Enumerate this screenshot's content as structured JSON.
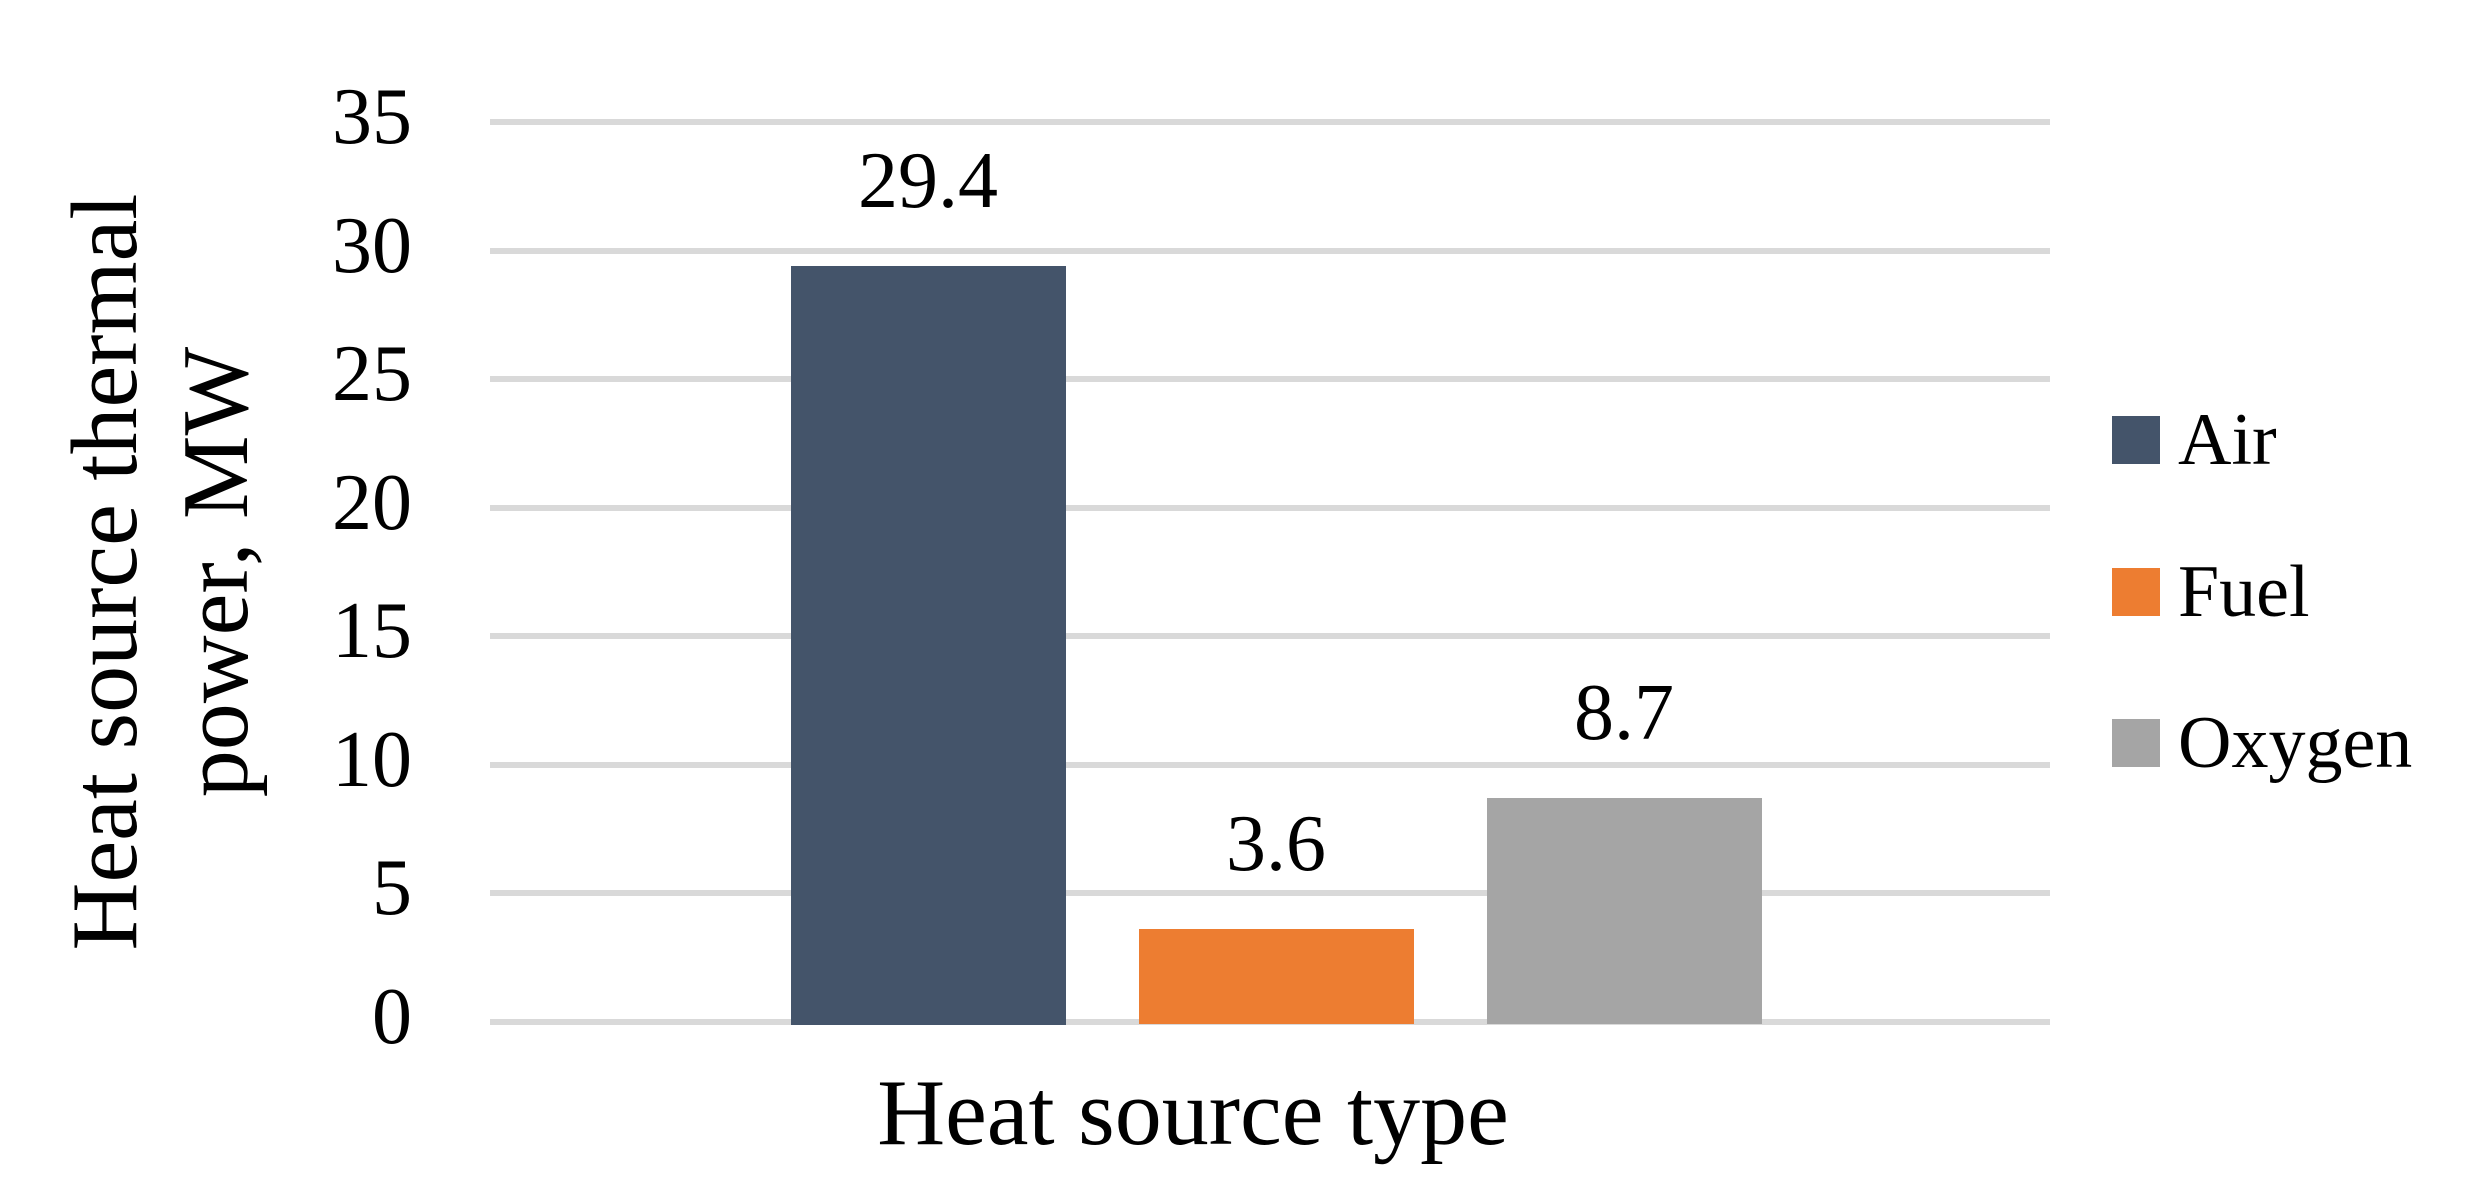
{
  "chart_data": {
    "type": "bar",
    "title": "",
    "xlabel": "Heat source type",
    "ylabel": "Heat source thermal power, MW",
    "ylim": [
      0,
      35
    ],
    "yticks": [
      35,
      30,
      25,
      20,
      15,
      10,
      5,
      0
    ],
    "grid": "horizontal",
    "legend_position": "right",
    "categories": [
      "Heat source type"
    ],
    "series": [
      {
        "name": "Air",
        "value": 29.4,
        "data_label": "29.4",
        "color": "#44546A"
      },
      {
        "name": "Fuel",
        "value": 3.6,
        "data_label": "3.6",
        "color": "#ED7D31"
      },
      {
        "name": "Oxygen",
        "value": 8.7,
        "data_label": "8.7",
        "color": "#A5A5A5"
      }
    ],
    "colors": {
      "gridline": "#D9D9D9",
      "text": "#000000",
      "background": "#FFFFFF"
    }
  }
}
